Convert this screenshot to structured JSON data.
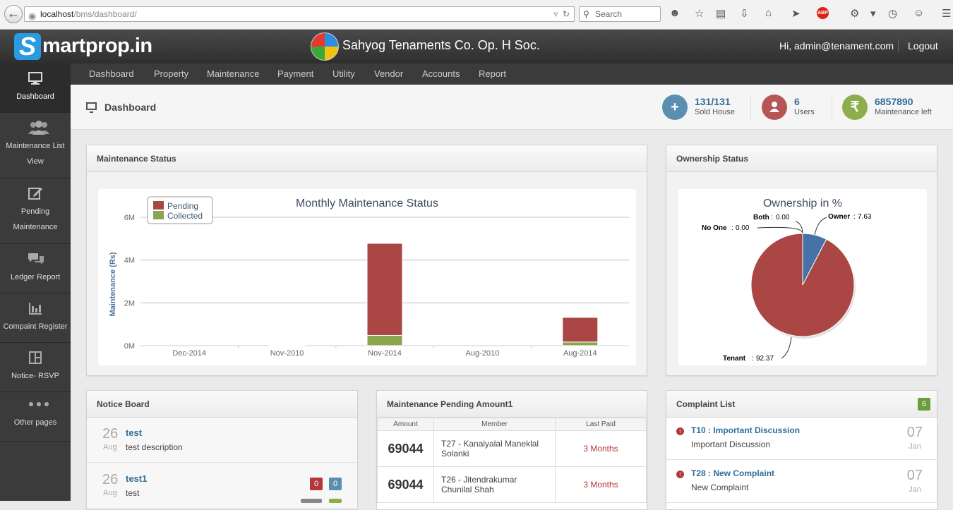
{
  "browser": {
    "url_host": "localhost",
    "url_path": "/bms/dashboard/",
    "search_placeholder": "Search"
  },
  "header": {
    "brand": "Smartprop.in",
    "brand_s": "S",
    "brand_rest": "martprop.in",
    "society": "Sahyog Tenaments Co. Op. H Soc.",
    "greeting": "Hi, admin@tenament.com",
    "logout": "Logout"
  },
  "sidebar": {
    "items": [
      {
        "label": "Dashboard",
        "icon": "monitor-icon"
      },
      {
        "label": "Maintenance List View",
        "icon": "users-icon"
      },
      {
        "label": "Pending Maintenance",
        "icon": "edit-icon"
      },
      {
        "label": "Ledger Report",
        "icon": "chat-icon"
      },
      {
        "label": "Compaint Register",
        "icon": "bar-chart-icon"
      },
      {
        "label": "Notice- RSVP",
        "icon": "layout-icon"
      },
      {
        "label": "Other pages",
        "icon": "more-icon"
      }
    ]
  },
  "topnav": {
    "items": [
      "Dashboard",
      "Property",
      "Maintenance",
      "Payment",
      "Utility",
      "Vendor",
      "Accounts",
      "Report"
    ]
  },
  "page": {
    "title": "Dashboard"
  },
  "stats": [
    {
      "value": "131/131",
      "label": "Sold House",
      "color": "#5b8fb0",
      "glyph": "+"
    },
    {
      "value": "6",
      "label": "Users",
      "color": "#b65555",
      "glyph": "user"
    },
    {
      "value": "6857890",
      "label": "Maintenance left",
      "color": "#8cae4c",
      "glyph": "₹"
    }
  ],
  "maintenance_panel": {
    "title": "Maintenance Status"
  },
  "ownership_panel": {
    "title": "Ownership Status"
  },
  "chart_data": [
    {
      "type": "bar",
      "stacked": true,
      "title": "Monthly Maintenance Status",
      "ylabel": "Maintenance (Rs)",
      "categories": [
        "Dec-2014",
        "Nov-2010",
        "Nov-2014",
        "Aug-2010",
        "Aug-2014"
      ],
      "series": [
        {
          "name": "Pending",
          "color": "#aa4643",
          "values": [
            0,
            30000,
            4300000,
            0,
            1150000
          ]
        },
        {
          "name": "Collected",
          "color": "#89a54e",
          "values": [
            0,
            10000,
            480000,
            0,
            170000
          ]
        }
      ],
      "ylim": [
        0,
        6000000
      ],
      "yticks": [
        "0M",
        "2M",
        "4M",
        "6M"
      ],
      "legend": "top-left",
      "grid": true
    },
    {
      "type": "pie",
      "title": "Ownership in %",
      "slices": [
        {
          "name": "Owner",
          "value": 7.63,
          "label": "7.63",
          "color": "#4572a7"
        },
        {
          "name": "Tenant",
          "value": 92.37,
          "label": "92.37",
          "color": "#aa4643"
        },
        {
          "name": "No One",
          "value": 0.0,
          "label": "0.00",
          "color": "#89a54e"
        },
        {
          "name": "Both",
          "value": 0.0,
          "label": "0.00",
          "color": "#80699b"
        }
      ]
    }
  ],
  "notice_board": {
    "title": "Notice Board",
    "items": [
      {
        "day": "26",
        "month": "Aug",
        "title": "test",
        "desc": "test description"
      },
      {
        "day": "26",
        "month": "Aug",
        "title": "test1",
        "desc": "test",
        "badges": [
          "0",
          "0"
        ]
      }
    ]
  },
  "maint_pending": {
    "title": "Maintenance Pending Amount1",
    "columns": [
      "Amount",
      "Member",
      "Last Paid"
    ],
    "rows": [
      {
        "amount": "69044",
        "member": "T27 - Kanaiyalal Maneklal Solanki",
        "last_paid": "3 Months"
      },
      {
        "amount": "69044",
        "member": "T26 - Jitendrakumar Chunilal Shah",
        "last_paid": "3 Months"
      }
    ]
  },
  "complaints": {
    "title": "Complaint List",
    "count": "6",
    "items": [
      {
        "title": "T10 : Important Discussion",
        "desc": "Important Discussion",
        "day": "07",
        "month": "Jan"
      },
      {
        "title": "T28 : New Complaint",
        "desc": "New Complaint",
        "day": "07",
        "month": "Jan"
      }
    ]
  }
}
